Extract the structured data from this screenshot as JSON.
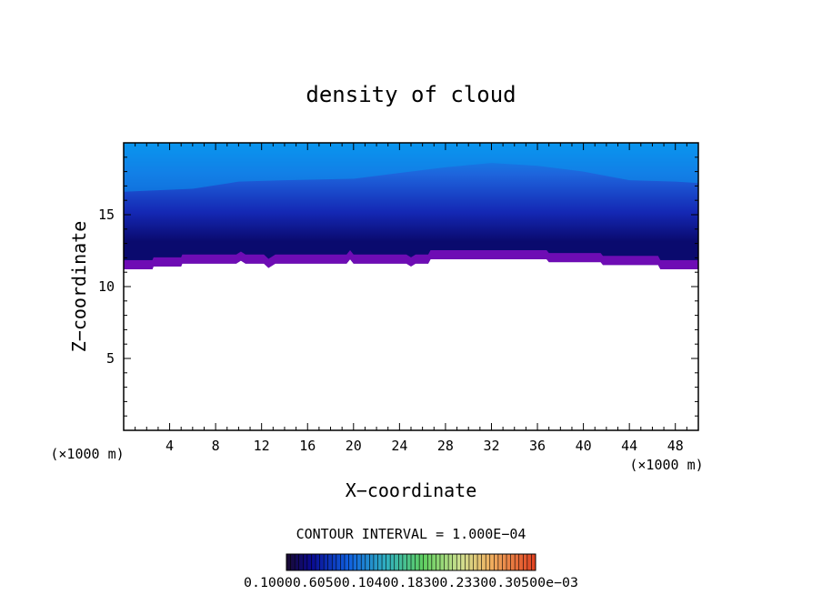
{
  "chart_data": {
    "type": "heatmap",
    "title": "density of cloud",
    "xlabel": "X−coordinate",
    "ylabel": "Z−coordinate",
    "x_unit_left": "(×1000 m)",
    "x_unit_right": "(×1000 m)",
    "xlim": [
      0,
      50
    ],
    "ylim": [
      0,
      20
    ],
    "x_ticks": [
      4,
      8,
      12,
      16,
      20,
      24,
      28,
      32,
      36,
      40,
      44,
      48
    ],
    "y_ticks": [
      5,
      10,
      15
    ],
    "x_tick_labels": [
      "4",
      "8",
      "12",
      "16",
      "20",
      "24",
      "28",
      "32",
      "36",
      "40",
      "44",
      "48"
    ],
    "y_tick_labels": [
      "5",
      "10",
      "15"
    ],
    "cloud_base_z": [
      [
        0,
        11.2
      ],
      [
        2.5,
        11.2
      ],
      [
        2.6,
        11.4
      ],
      [
        5,
        11.4
      ],
      [
        5.1,
        11.6
      ],
      [
        9.8,
        11.6
      ],
      [
        10.2,
        11.8
      ],
      [
        10.6,
        11.6
      ],
      [
        12.2,
        11.6
      ],
      [
        12.6,
        11.3
      ],
      [
        13.2,
        11.6
      ],
      [
        19.4,
        11.6
      ],
      [
        19.7,
        11.9
      ],
      [
        20.0,
        11.6
      ],
      [
        24.6,
        11.6
      ],
      [
        25.0,
        11.4
      ],
      [
        25.4,
        11.6
      ],
      [
        26.5,
        11.6
      ],
      [
        26.7,
        11.9
      ],
      [
        36.8,
        11.9
      ],
      [
        37.0,
        11.7
      ],
      [
        41.5,
        11.7
      ],
      [
        41.7,
        11.5
      ],
      [
        46.5,
        11.5
      ],
      [
        46.7,
        11.2
      ],
      [
        50,
        11.2
      ]
    ],
    "layer_top_z": [
      [
        0,
        16.6
      ],
      [
        6,
        16.8
      ],
      [
        10,
        17.3
      ],
      [
        14,
        17.4
      ],
      [
        20,
        17.5
      ],
      [
        24,
        17.9
      ],
      [
        28,
        18.3
      ],
      [
        32,
        18.6
      ],
      [
        36,
        18.4
      ],
      [
        40,
        18.0
      ],
      [
        44,
        17.4
      ],
      [
        48,
        17.3
      ],
      [
        50,
        17.2
      ]
    ],
    "domain_top_z": 20,
    "contour_interval_label": "CONTOUR INTERVAL = 1.000E−04",
    "colorbar_labels": "0.10000.60500.10400.18300.23300.30500e−03",
    "colors": {
      "top": "#0a96ee",
      "upper": "#1e64dc",
      "mid": "#1428b4",
      "dark": "#0a0a6e",
      "base": "#6e0cb4"
    }
  }
}
